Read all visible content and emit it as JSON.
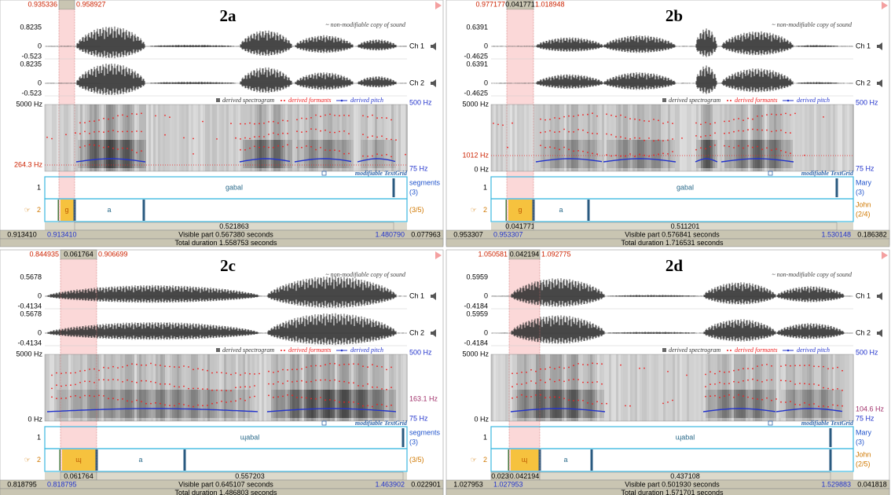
{
  "panels": [
    {
      "label": "2a",
      "selection": {
        "start": "0.935336",
        "end": "0.958927"
      },
      "note": "~ non-modifiable copy of sound",
      "channels": [
        {
          "name": "Ch 1",
          "max": "0.8235",
          "zero": "0",
          "min": "-0.523"
        },
        {
          "name": "Ch 2",
          "max": "0.8235",
          "zero": "0",
          "min": "-0.523"
        }
      ],
      "legend": [
        "derived spectrogram",
        "derived formants",
        "derived pitch"
      ],
      "spectrogram": {
        "top": "5000 Hz",
        "cursor_left": "264.3 Hz",
        "pitch_top": "500 Hz",
        "pitch_bottom": "75 Hz"
      },
      "textgrid_label": "modifiable TextGrid",
      "tiers": [
        {
          "number": "1",
          "name": [
            "segments",
            "(3)"
          ],
          "intervals": [
            "gabal"
          ]
        },
        {
          "pointer": "☞",
          "number": "2",
          "name": [
            "(3/5)"
          ],
          "intervals": [
            "g",
            "a"
          ]
        }
      ],
      "durations": [
        "0.521863"
      ],
      "window": {
        "start": "0.913410",
        "visible_start": "0.913410",
        "visible": "Visible part 0.567380 seconds",
        "visible_end": "1.480790",
        "end": "0.077963"
      },
      "total": "Total duration 1.558753 seconds"
    },
    {
      "label": "2b",
      "selection": {
        "start": "0.977177",
        "duration": "0.041771",
        "end": "1.018948"
      },
      "note": "~ non-modifiable copy of sound",
      "channels": [
        {
          "name": "Ch 1",
          "max": "0.6391",
          "zero": "0",
          "min": "-0.4625"
        },
        {
          "name": "Ch 2",
          "max": "0.6391",
          "zero": "0",
          "min": "-0.4625"
        }
      ],
      "legend": [
        "derived spectrogram",
        "derived formants",
        "derived pitch"
      ],
      "spectrogram": {
        "top": "5000 Hz",
        "cursor_left": "1012 Hz",
        "bottom": "0 Hz",
        "pitch_top": "500 Hz",
        "pitch_bottom": "75 Hz"
      },
      "textgrid_label": "modifiable TextGrid",
      "tiers": [
        {
          "number": "1",
          "name": [
            "Mary",
            "(3)"
          ],
          "intervals": [
            "gabal"
          ]
        },
        {
          "pointer": "☞",
          "number": "2",
          "name": [
            "John",
            "(2/4)"
          ],
          "intervals": [
            "g",
            "a"
          ]
        }
      ],
      "durations": [
        "0.041771",
        "0.511201"
      ],
      "window": {
        "start": "0.953307",
        "visible_start": "0.953307",
        "visible": "Visible part 0.576841 seconds",
        "visible_end": "1.530148",
        "end": "0.186382"
      },
      "total": "Total duration 1.716531 seconds"
    },
    {
      "label": "2c",
      "selection": {
        "start": "0.844935",
        "duration": "0.061764",
        "end": "0.906699"
      },
      "note": "~ non-modifiable copy of sound",
      "channels": [
        {
          "name": "Ch 1",
          "max": "0.5678",
          "zero": "0",
          "min": "-0.4134"
        },
        {
          "name": "Ch 2",
          "max": "0.5678",
          "zero": "0",
          "min": "-0.4134"
        }
      ],
      "legend": [
        "derived spectrogram",
        "derived formants",
        "derived pitch"
      ],
      "spectrogram": {
        "top": "5000 Hz",
        "bottom": "0 Hz",
        "pitch_top": "500 Hz",
        "cursor_right": "163.1 Hz",
        "pitch_bottom": "75 Hz"
      },
      "textgrid_label": "modifiable TextGrid",
      "tiers": [
        {
          "number": "1",
          "name": [
            "segments",
            "(3)"
          ],
          "intervals": [
            "ɰabal"
          ]
        },
        {
          "pointer": "☞",
          "number": "2",
          "name": [
            "(3/5)"
          ],
          "intervals": [
            "ɰ",
            "a"
          ]
        }
      ],
      "durations": [
        "0.061764",
        "0.557203"
      ],
      "window": {
        "start": "0.818795",
        "visible_start": "0.818795",
        "visible": "Visible part 0.645107 seconds",
        "visible_end": "1.463902",
        "end": "0.022901"
      },
      "total": "Total duration 1.486803 seconds"
    },
    {
      "label": "2d",
      "selection": {
        "start": "1.050581",
        "duration": "0.042194",
        "end": "1.092775"
      },
      "note": "~ non-modifiable copy of sound",
      "channels": [
        {
          "name": "Ch 1",
          "max": "0.5959",
          "zero": "0",
          "min": "-0.4184"
        },
        {
          "name": "Ch 2",
          "max": "0.5959",
          "zero": "0",
          "min": "-0.4184"
        }
      ],
      "legend": [
        "derived spectrogram",
        "derived formants",
        "derived pitch"
      ],
      "spectrogram": {
        "top": "5000 Hz",
        "bottom": "0 Hz",
        "pitch_top": "500 Hz",
        "cursor_right": "104.6 Hz",
        "pitch_bottom": "75 Hz"
      },
      "textgrid_label": "modifiable TextGrid",
      "tiers": [
        {
          "number": "1",
          "name": [
            "Mary",
            "(3)"
          ],
          "intervals": [
            "ɰabal"
          ]
        },
        {
          "pointer": "☞",
          "number": "2",
          "name": [
            "John",
            "(2/5)"
          ],
          "intervals": [
            "ɰ",
            "a"
          ]
        }
      ],
      "durations": [
        "0.023",
        "0.042194",
        "0.437108"
      ],
      "window": {
        "start": "1.027953",
        "visible_start": "1.027953",
        "visible": "Visible part 0.501930 seconds",
        "visible_end": "1.529883",
        "end": "0.041818"
      },
      "total": "Total duration 1.571701 seconds"
    }
  ]
}
